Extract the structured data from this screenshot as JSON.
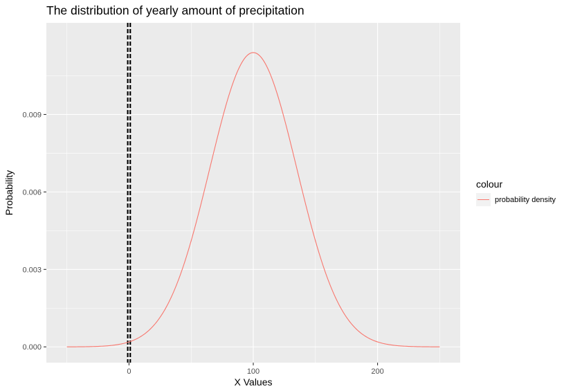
{
  "chart_data": {
    "type": "line",
    "title": "The distribution of yearly amount of precipitation",
    "xlabel": "X Values",
    "ylabel": "Probability",
    "xlim": [
      -66.5,
      266.5
    ],
    "ylim": [
      -0.00061,
      0.01255
    ],
    "x_ticks": [
      0,
      100,
      200
    ],
    "x_tick_labels": [
      "0",
      "100",
      "200"
    ],
    "y_ticks": [
      0,
      0.003,
      0.006,
      0.009
    ],
    "y_tick_labels": [
      "0.000",
      "0.003",
      "0.006",
      "0.009"
    ],
    "grid": true,
    "legend": {
      "title": "colour",
      "position": "right",
      "entries": [
        "probability density"
      ]
    },
    "series": [
      {
        "name": "probability density",
        "color": "#F8766D",
        "x_range": [
          -50,
          250
        ],
        "distribution": {
          "kind": "normal",
          "mean": 100,
          "sd": 35
        },
        "x": [
          -50,
          -25,
          0,
          25,
          50,
          75,
          100,
          125,
          150,
          175,
          200,
          225,
          250
        ],
        "y": [
          1.2e-06,
          1.94e-05,
          0.000193,
          0.00114,
          0.0041,
          0.00887,
          0.0114,
          0.00887,
          0.0041,
          0.00114,
          0.000193,
          1.94e-05,
          1.2e-06
        ]
      }
    ],
    "vlines": [
      {
        "x": -1,
        "style": "dashed",
        "color": "#000000"
      },
      {
        "x": 1,
        "style": "dashed",
        "color": "#000000"
      }
    ],
    "panel_background": "#EBEBEB",
    "grid_color": "#FFFFFF"
  }
}
